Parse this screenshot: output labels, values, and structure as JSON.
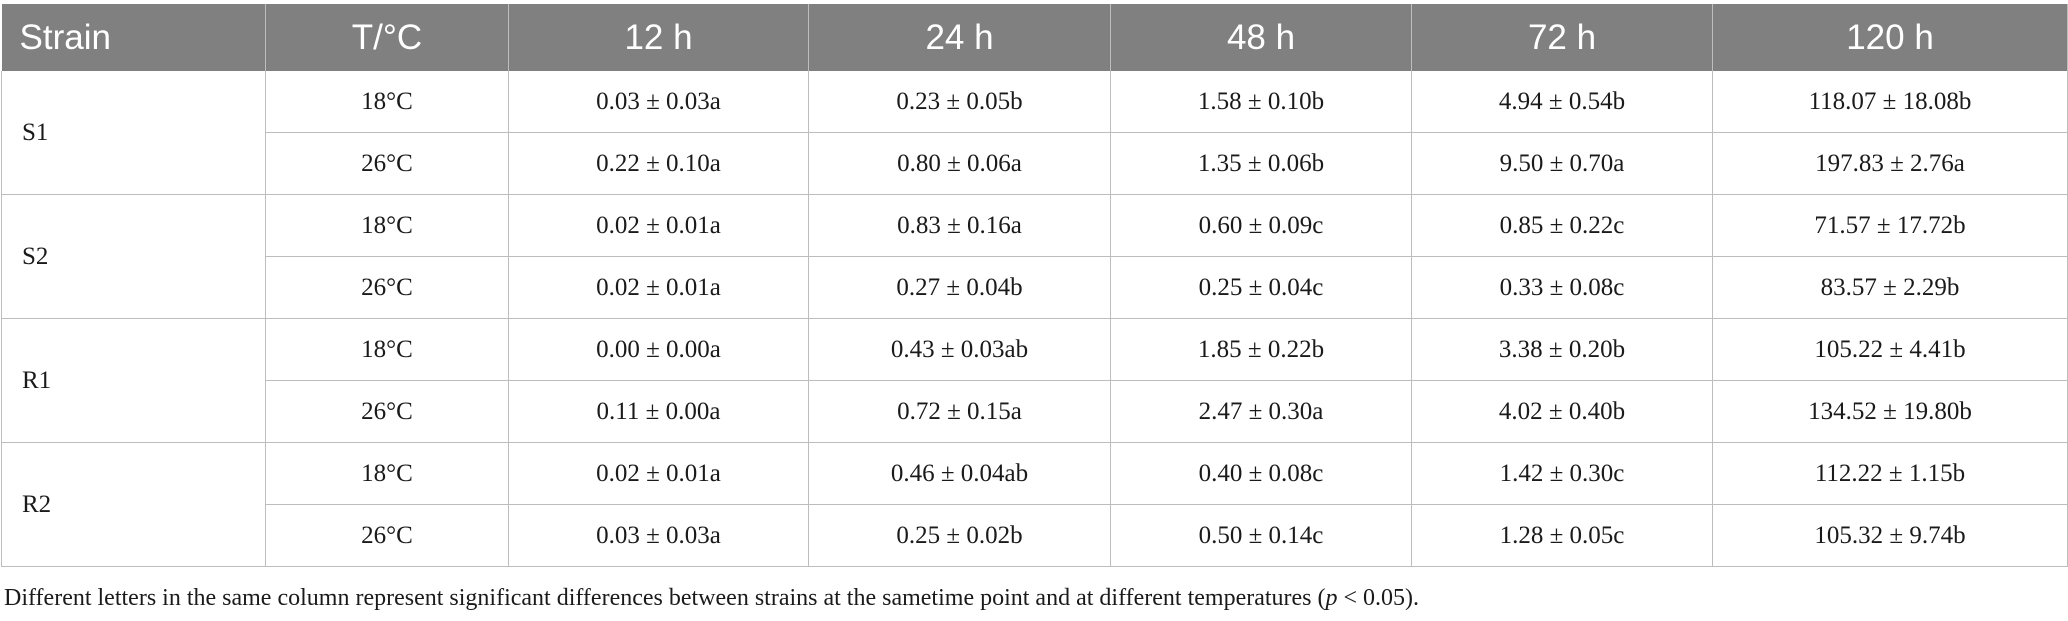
{
  "headers": [
    "Strain",
    "T/°C",
    "12 h",
    "24 h",
    "48 h",
    "72 h",
    "120 h"
  ],
  "strains": [
    {
      "name": "S1",
      "rows": [
        {
          "temp": "18°C",
          "values": [
            "0.03 ± 0.03a",
            "0.23 ± 0.05b",
            "1.58 ± 0.10b",
            "4.94 ± 0.54b",
            "118.07 ± 18.08b"
          ]
        },
        {
          "temp": "26°C",
          "values": [
            "0.22 ± 0.10a",
            "0.80 ± 0.06a",
            "1.35 ± 0.06b",
            "9.50 ± 0.70a",
            "197.83 ± 2.76a"
          ]
        }
      ]
    },
    {
      "name": "S2",
      "rows": [
        {
          "temp": "18°C",
          "values": [
            "0.02 ± 0.01a",
            "0.83 ± 0.16a",
            "0.60 ± 0.09c",
            "0.85 ± 0.22c",
            "71.57 ± 17.72b"
          ]
        },
        {
          "temp": "26°C",
          "values": [
            "0.02 ± 0.01a",
            "0.27 ± 0.04b",
            "0.25 ± 0.04c",
            "0.33 ± 0.08c",
            "83.57 ± 2.29b"
          ]
        }
      ]
    },
    {
      "name": "R1",
      "rows": [
        {
          "temp": "18°C",
          "values": [
            "0.00 ± 0.00a",
            "0.43 ± 0.03ab",
            "1.85 ± 0.22b",
            "3.38 ± 0.20b",
            "105.22 ± 4.41b"
          ]
        },
        {
          "temp": "26°C",
          "values": [
            "0.11 ± 0.00a",
            "0.72 ± 0.15a",
            "2.47 ± 0.30a",
            "4.02 ± 0.40b",
            "134.52 ± 19.80b"
          ]
        }
      ]
    },
    {
      "name": "R2",
      "rows": [
        {
          "temp": "18°C",
          "values": [
            "0.02 ± 0.01a",
            "0.46 ± 0.04ab",
            "0.40 ± 0.08c",
            "1.42 ± 0.30c",
            "112.22 ± 1.15b"
          ]
        },
        {
          "temp": "26°C",
          "values": [
            "0.03 ± 0.03a",
            "0.25 ± 0.02b",
            "0.50 ± 0.14c",
            "1.28 ± 0.05c",
            "105.32 ± 9.74b"
          ]
        }
      ]
    }
  ],
  "footnote": {
    "before": "Different letters in the same column represent significant differences between strains at the sametime point and at different temperatures (",
    "italic": "p",
    "after": " < 0.05)."
  }
}
